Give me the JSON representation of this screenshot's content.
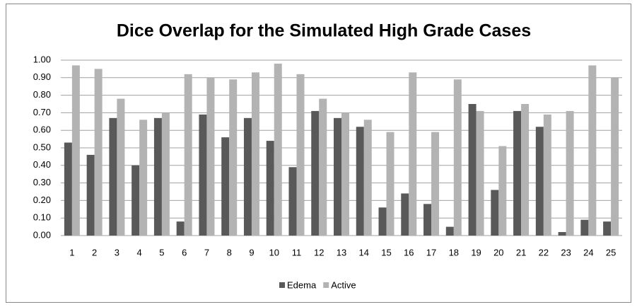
{
  "chart_data": {
    "type": "bar",
    "title": "Dice Overlap for the Simulated High Grade Cases",
    "categories": [
      "1",
      "2",
      "3",
      "4",
      "5",
      "6",
      "7",
      "8",
      "9",
      "10",
      "11",
      "12",
      "13",
      "14",
      "15",
      "16",
      "17",
      "18",
      "19",
      "20",
      "21",
      "22",
      "23",
      "24",
      "25"
    ],
    "series": [
      {
        "name": "Edema",
        "color": "#595959",
        "values": [
          0.53,
          0.46,
          0.67,
          0.4,
          0.67,
          0.08,
          0.69,
          0.56,
          0.67,
          0.54,
          0.39,
          0.71,
          0.67,
          0.62,
          0.16,
          0.24,
          0.18,
          0.05,
          0.75,
          0.26,
          0.71,
          0.62,
          0.02,
          0.09,
          0.08
        ]
      },
      {
        "name": "Active",
        "color": "#b3b3b3",
        "values": [
          0.97,
          0.95,
          0.78,
          0.66,
          0.7,
          0.92,
          0.9,
          0.89,
          0.93,
          0.98,
          0.92,
          0.78,
          0.7,
          0.66,
          0.59,
          0.93,
          0.59,
          0.89,
          0.71,
          0.51,
          0.75,
          0.69,
          0.71,
          0.97,
          0.9
        ]
      }
    ],
    "ylim": [
      0,
      1
    ],
    "yticks": [
      {
        "value": 0,
        "label": "0.00"
      },
      {
        "value": 0.1,
        "label": "0.10"
      },
      {
        "value": 0.2,
        "label": "0.20"
      },
      {
        "value": 0.3,
        "label": "0.30"
      },
      {
        "value": 0.4,
        "label": "0.40"
      },
      {
        "value": 0.5,
        "label": "0.50"
      },
      {
        "value": 0.6,
        "label": "0.60"
      },
      {
        "value": 0.7,
        "label": "0.70"
      },
      {
        "value": 0.8,
        "label": "0.80"
      },
      {
        "value": 0.9,
        "label": "0.90"
      },
      {
        "value": 1,
        "label": "1.00"
      }
    ],
    "grid": true,
    "legend": "bottom"
  }
}
